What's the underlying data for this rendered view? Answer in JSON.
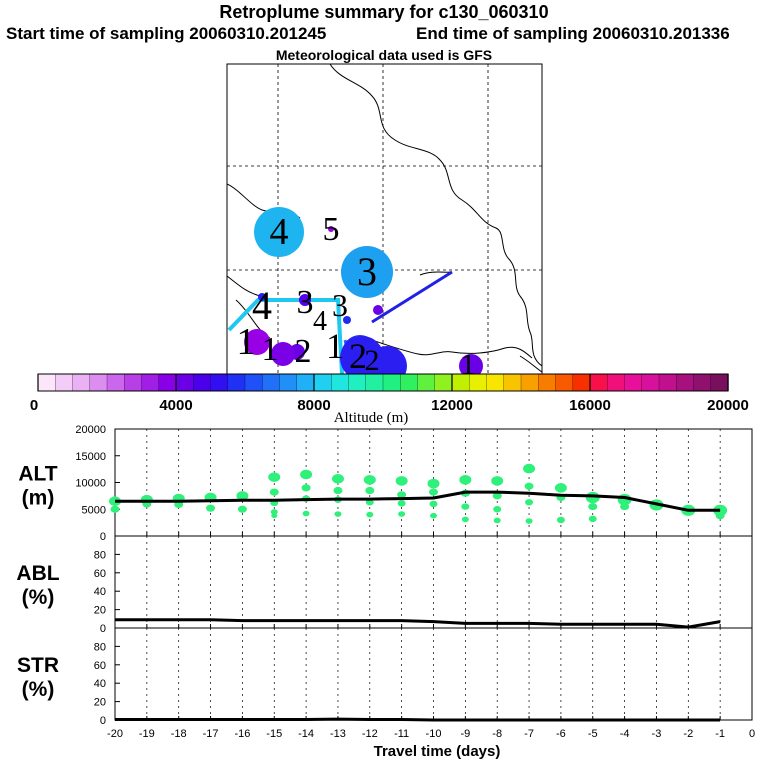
{
  "header": {
    "title": "Retroplume summary for c130_060310",
    "start": "Start time of sampling 20060310.201245",
    "end": "End time of sampling 20060310.201336",
    "met": "Meteorological data used is GFS"
  },
  "map": {
    "labels": [
      {
        "text": "4",
        "color": "#1eb4f0",
        "r": 25
      },
      {
        "text": "5",
        "color": "#9a00e6",
        "r": 3
      },
      {
        "text": "3",
        "color": "#1ea0f0",
        "r": 26
      },
      {
        "text": "4",
        "color": "#2a1ef0",
        "r": 4
      },
      {
        "text": "3",
        "color": "#5500ee",
        "r": 6
      },
      {
        "text": "3",
        "color": "#6a00e6",
        "r": 5
      },
      {
        "text": "4",
        "color": "#1e2cf0",
        "r": 4
      },
      {
        "text": "1",
        "color": "#9a00e6",
        "r": 13
      },
      {
        "text": "1",
        "color": "#2a2ef0",
        "r": 18
      },
      {
        "text": "1",
        "color": "#6a00e6",
        "r": 8
      },
      {
        "text": "2",
        "color": "#7a00e6",
        "r": 12
      },
      {
        "text": "2",
        "color": "#2a1ef0",
        "r": 22
      },
      {
        "text": "2",
        "color": "#2a1ef0",
        "r": 20
      },
      {
        "text": "1",
        "color": "#6a00e6",
        "r": 12
      }
    ]
  },
  "colorbar": {
    "ticks": [
      "0",
      "4000",
      "8000",
      "12000",
      "16000",
      "20000"
    ],
    "xlabel": "Altitude (m)",
    "colors": [
      "#fce6fc",
      "#f4ccf8",
      "#eab2f4",
      "#dc8ef0",
      "#cc66ec",
      "#b83ee8",
      "#a01ee6",
      "#8a00e6",
      "#6a00e6",
      "#4a00ea",
      "#3010f0",
      "#2030f4",
      "#2050f8",
      "#2070f8",
      "#2090f8",
      "#20b0f8",
      "#20d0f0",
      "#20e6e0",
      "#20f0c0",
      "#20f0a0",
      "#20f080",
      "#30f060",
      "#60f040",
      "#90f020",
      "#c0f000",
      "#e6f000",
      "#f8e600",
      "#f8c400",
      "#f8a000",
      "#f87c00",
      "#f85a00",
      "#f83000",
      "#f8104a",
      "#f0107a",
      "#e8109a",
      "#d8109e",
      "#c0108e",
      "#a8107e",
      "#90106e",
      "#78105e"
    ]
  },
  "chart_data": [
    {
      "type": "scatter+line",
      "label_top": "ALT",
      "label_bottom": "(m)",
      "x": [
        -20,
        -19,
        -18,
        -17,
        -16,
        -15,
        -14,
        -13,
        -12,
        -11,
        -10,
        -9,
        -8,
        -7,
        -6,
        -5,
        -4,
        -3,
        -2,
        -1
      ],
      "ylim": [
        0,
        20000
      ],
      "yticks": [
        "0",
        "5000",
        "10000",
        "15000",
        "20000"
      ],
      "median": [
        6500,
        6500,
        6500,
        6600,
        6700,
        6700,
        6800,
        6900,
        6900,
        7000,
        7100,
        8200,
        8200,
        8000,
        7600,
        7500,
        7200,
        6000,
        4800,
        4800
      ],
      "points": [
        {
          "x": -20,
          "ys": [
            6500,
            5000
          ]
        },
        {
          "x": -19,
          "ys": [
            6800,
            6000
          ]
        },
        {
          "x": -18,
          "ys": [
            7000,
            5900
          ]
        },
        {
          "x": -17,
          "ys": [
            7200,
            5200
          ]
        },
        {
          "x": -16,
          "ys": [
            7500,
            5000
          ]
        },
        {
          "x": -15,
          "ys": [
            11000,
            8200,
            6200,
            4500,
            3800
          ]
        },
        {
          "x": -14,
          "ys": [
            11500,
            9000,
            7000,
            4200
          ]
        },
        {
          "x": -13,
          "ys": [
            10700,
            8500,
            6800,
            4100
          ]
        },
        {
          "x": -12,
          "ys": [
            10500,
            8500,
            6300,
            4000
          ]
        },
        {
          "x": -11,
          "ys": [
            10300,
            7700,
            6100,
            4100
          ]
        },
        {
          "x": -10,
          "ys": [
            9800,
            8200,
            6000,
            3800
          ]
        },
        {
          "x": -9,
          "ys": [
            10500,
            8000,
            5500,
            3100
          ]
        },
        {
          "x": -8,
          "ys": [
            10300,
            7500,
            5000,
            2900
          ]
        },
        {
          "x": -7,
          "ys": [
            12600,
            9300,
            6300,
            2800
          ]
        },
        {
          "x": -6,
          "ys": [
            9000,
            7200,
            3000
          ]
        },
        {
          "x": -5,
          "ys": [
            7200,
            5500,
            3200
          ]
        },
        {
          "x": -4,
          "ys": [
            6800,
            5500
          ]
        },
        {
          "x": -3,
          "ys": [
            5800
          ]
        },
        {
          "x": -2,
          "ys": [
            4800
          ]
        },
        {
          "x": -1,
          "ys": [
            4800,
            3800
          ]
        }
      ]
    },
    {
      "type": "line",
      "label_top": "ABL",
      "label_bottom": "(%)",
      "x": [
        -20,
        -19,
        -18,
        -17,
        -16,
        -15,
        -14,
        -13,
        -12,
        -11,
        -10,
        -9,
        -8,
        -7,
        -6,
        -5,
        -4,
        -3,
        -2,
        -1
      ],
      "ylim": [
        0,
        100
      ],
      "yticks": [
        "0",
        "20",
        "40",
        "60",
        "80"
      ],
      "values": [
        9,
        9,
        9,
        9,
        8,
        8,
        8,
        8,
        8,
        8,
        7,
        5,
        5,
        5,
        4,
        4,
        4,
        4,
        1,
        7
      ]
    },
    {
      "type": "line",
      "label_top": "STR",
      "label_bottom": "(%)",
      "x": [
        -20,
        -19,
        -18,
        -17,
        -16,
        -15,
        -14,
        -13,
        -12,
        -11,
        -10,
        -9,
        -8,
        -7,
        -6,
        -5,
        -4,
        -3,
        -2,
        -1
      ],
      "ylim": [
        0,
        100
      ],
      "yticks": [
        "0",
        "20",
        "40",
        "60",
        "80"
      ],
      "values": [
        0.5,
        0.5,
        0.5,
        0.5,
        0.5,
        0.5,
        0.5,
        1,
        0.5,
        0.5,
        0,
        0,
        0,
        0,
        0,
        0,
        0,
        0,
        0,
        0
      ],
      "xticks": [
        "-20",
        "-19",
        "-18",
        "-17",
        "-16",
        "-15",
        "-14",
        "-13",
        "-12",
        "-11",
        "-10",
        "-9",
        "-8",
        "-7",
        "-6",
        "-5",
        "-4",
        "-3",
        "-2",
        "-1",
        "0"
      ],
      "xlabel": "Travel time (days)"
    }
  ]
}
